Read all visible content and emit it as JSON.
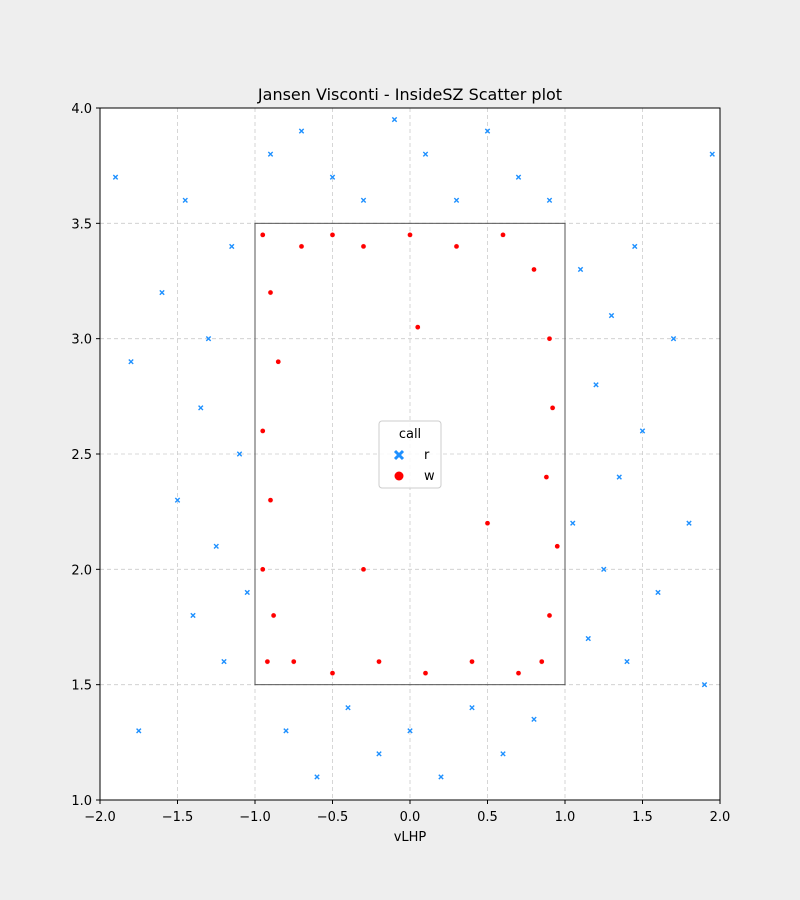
{
  "chart_data": {
    "type": "scatter",
    "title": "Jansen Visconti - InsideSZ Scatter plot",
    "xlabel": "vLHP",
    "ylabel": "",
    "xlim": [
      -2.0,
      2.0
    ],
    "ylim": [
      1.0,
      4.0
    ],
    "xticks": [
      "−2.0",
      "−1.5",
      "−1.0",
      "−0.5",
      "0.0",
      "0.5",
      "1.0",
      "1.5",
      "2.0"
    ],
    "xtick_values": [
      -2.0,
      -1.5,
      -1.0,
      -0.5,
      0.0,
      0.5,
      1.0,
      1.5,
      2.0
    ],
    "yticks": [
      "1.0",
      "1.5",
      "2.0",
      "2.5",
      "3.0",
      "3.5",
      "4.0"
    ],
    "ytick_values": [
      1.0,
      1.5,
      2.0,
      2.5,
      3.0,
      3.5,
      4.0
    ],
    "grid": true,
    "legend": {
      "title": "call",
      "placement": "center",
      "entries": [
        {
          "label": "r",
          "marker": "x",
          "color": "#1e90ff"
        },
        {
          "label": "w",
          "marker": "circle",
          "color": "#ff0000"
        }
      ]
    },
    "strike_zone": {
      "x": [
        -1.0,
        1.0
      ],
      "y": [
        1.5,
        3.5
      ]
    },
    "series": [
      {
        "name": "r",
        "color": "#1e90ff",
        "marker": "x",
        "region": "outside strike zone",
        "points": [
          [
            -1.9,
            3.7
          ],
          [
            -1.8,
            2.9
          ],
          [
            -1.75,
            1.3
          ],
          [
            -1.6,
            3.2
          ],
          [
            -1.5,
            2.3
          ],
          [
            -1.45,
            3.6
          ],
          [
            -1.4,
            1.8
          ],
          [
            -1.35,
            2.7
          ],
          [
            -1.3,
            3.0
          ],
          [
            -1.25,
            2.1
          ],
          [
            -1.2,
            1.6
          ],
          [
            -1.15,
            3.4
          ],
          [
            -1.1,
            2.5
          ],
          [
            -1.05,
            1.9
          ],
          [
            -0.9,
            3.8
          ],
          [
            -0.8,
            1.3
          ],
          [
            -0.7,
            3.9
          ],
          [
            -0.6,
            1.1
          ],
          [
            -0.5,
            3.7
          ],
          [
            -0.4,
            1.4
          ],
          [
            -0.3,
            3.6
          ],
          [
            -0.2,
            1.2
          ],
          [
            -0.1,
            3.95
          ],
          [
            0.0,
            1.3
          ],
          [
            0.1,
            3.8
          ],
          [
            0.2,
            1.1
          ],
          [
            0.3,
            3.6
          ],
          [
            0.4,
            1.4
          ],
          [
            0.5,
            3.9
          ],
          [
            0.6,
            1.2
          ],
          [
            0.7,
            3.7
          ],
          [
            0.8,
            1.35
          ],
          [
            0.9,
            3.6
          ],
          [
            1.05,
            2.2
          ],
          [
            1.1,
            3.3
          ],
          [
            1.15,
            1.7
          ],
          [
            1.2,
            2.8
          ],
          [
            1.25,
            2.0
          ],
          [
            1.3,
            3.1
          ],
          [
            1.35,
            2.4
          ],
          [
            1.4,
            1.6
          ],
          [
            1.45,
            3.4
          ],
          [
            1.5,
            2.6
          ],
          [
            1.6,
            1.9
          ],
          [
            1.7,
            3.0
          ],
          [
            1.8,
            2.2
          ],
          [
            1.9,
            1.5
          ],
          [
            1.95,
            3.8
          ]
        ]
      },
      {
        "name": "w",
        "color": "#ff0000",
        "marker": "circle",
        "region": "inside strike zone",
        "points": [
          [
            -0.95,
            3.45
          ],
          [
            -0.9,
            3.2
          ],
          [
            -0.85,
            2.9
          ],
          [
            -0.95,
            2.6
          ],
          [
            -0.9,
            2.3
          ],
          [
            -0.95,
            2.0
          ],
          [
            -0.88,
            1.8
          ],
          [
            -0.92,
            1.6
          ],
          [
            -0.7,
            3.4
          ],
          [
            -0.5,
            3.45
          ],
          [
            -0.3,
            3.4
          ],
          [
            0.0,
            3.45
          ],
          [
            0.3,
            3.4
          ],
          [
            0.6,
            3.45
          ],
          [
            0.8,
            3.3
          ],
          [
            0.9,
            3.0
          ],
          [
            0.92,
            2.7
          ],
          [
            0.88,
            2.4
          ],
          [
            0.95,
            2.1
          ],
          [
            0.9,
            1.8
          ],
          [
            0.85,
            1.6
          ],
          [
            0.7,
            1.55
          ],
          [
            0.4,
            1.6
          ],
          [
            0.1,
            1.55
          ],
          [
            -0.2,
            1.6
          ],
          [
            -0.5,
            1.55
          ],
          [
            -0.75,
            1.6
          ],
          [
            0.05,
            3.05
          ],
          [
            0.5,
            2.2
          ],
          [
            -0.3,
            2.0
          ]
        ]
      }
    ]
  }
}
